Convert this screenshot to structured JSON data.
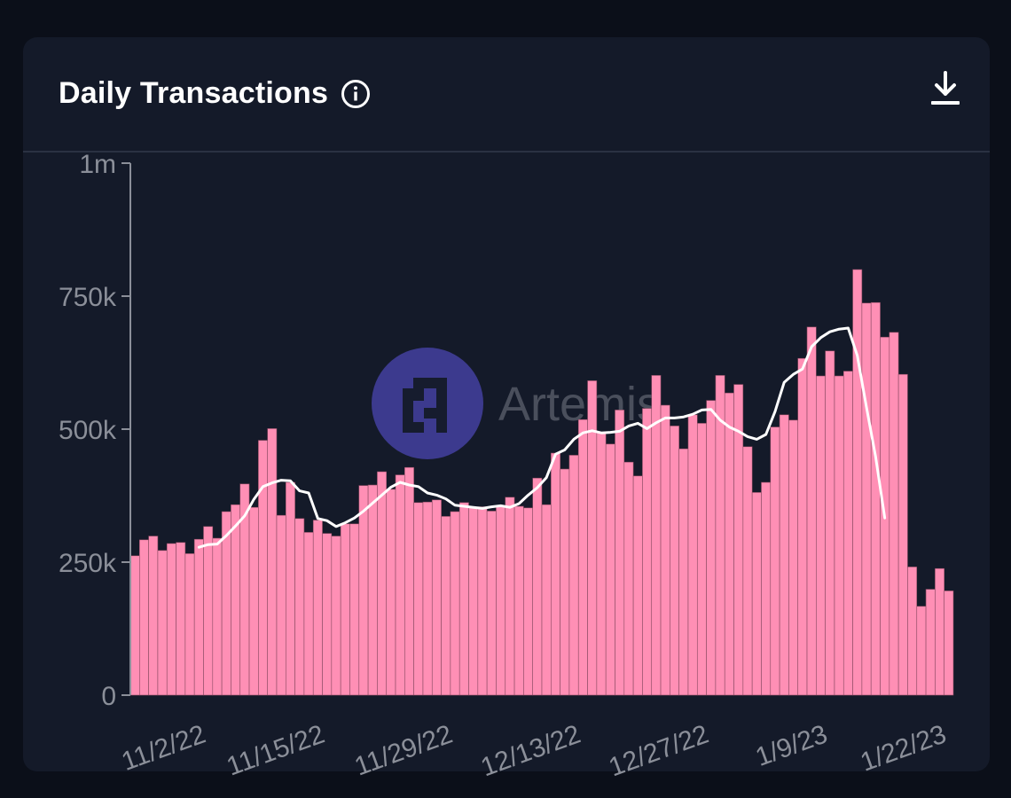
{
  "card": {
    "title": "Daily Transactions",
    "info_icon": "info-circle-icon",
    "download_icon": "download-icon"
  },
  "watermark": {
    "text": "Artemis",
    "logo_icon": "artemis-logo-icon"
  },
  "colors": {
    "bar": "#ff8fb5",
    "line": "#ffffff",
    "background": "#141a29",
    "axis_text": "#8b8f99"
  },
  "chart_data": {
    "type": "bar",
    "title": "Daily Transactions",
    "xlabel": "",
    "ylabel": "",
    "ylim": [
      0,
      1000000
    ],
    "y_ticks": [
      {
        "value": 0,
        "label": "0"
      },
      {
        "value": 250000,
        "label": "250k"
      },
      {
        "value": 500000,
        "label": "500k"
      },
      {
        "value": 750000,
        "label": "750k"
      },
      {
        "value": 1000000,
        "label": "1m"
      }
    ],
    "x_tick_labels": [
      {
        "label": "11/2/22",
        "index": 5
      },
      {
        "label": "11/15/22",
        "index": 18
      },
      {
        "label": "11/29/22",
        "index": 32
      },
      {
        "label": "12/13/22",
        "index": 46
      },
      {
        "label": "12/27/22",
        "index": 60
      },
      {
        "label": "1/9/23",
        "index": 73
      },
      {
        "label": "1/22/23",
        "index": 86
      }
    ],
    "grid": false,
    "series": [
      {
        "type": "bar",
        "values": [
          262000,
          292000,
          299000,
          272000,
          285000,
          287000,
          266000,
          293000,
          317000,
          295000,
          345000,
          358000,
          397000,
          353000,
          479000,
          501000,
          338000,
          400000,
          332000,
          306000,
          329000,
          304000,
          299000,
          322000,
          322000,
          394000,
          395000,
          420000,
          387000,
          414000,
          428000,
          362000,
          363000,
          367000,
          336000,
          345000,
          362000,
          353000,
          354000,
          346000,
          354000,
          372000,
          355000,
          352000,
          408000,
          358000,
          455000,
          425000,
          451000,
          518000,
          591000,
          493000,
          472000,
          536000,
          438000,
          412000,
          539000,
          601000,
          545000,
          506000,
          463000,
          527000,
          511000,
          554000,
          601000,
          568000,
          584000,
          467000,
          381000,
          400000,
          504000,
          527000,
          517000,
          633000,
          692000,
          600000,
          647000,
          600000,
          609000,
          800000,
          737000,
          738000,
          673000,
          682000,
          603000,
          241000,
          167000,
          199000,
          238000,
          196000
        ]
      },
      {
        "type": "line",
        "start_index": 7,
        "values": [
          278000,
          283000,
          284000,
          300000,
          318000,
          337000,
          368000,
          392000,
          399000,
          404000,
          403000,
          384000,
          380000,
          332000,
          328000,
          317000,
          324000,
          333000,
          346000,
          361000,
          376000,
          391000,
          400000,
          395000,
          392000,
          380000,
          376000,
          369000,
          357000,
          355000,
          353000,
          351000,
          354000,
          356000,
          353000,
          360000,
          376000,
          390000,
          409000,
          453000,
          461000,
          481000,
          493000,
          497000,
          493000,
          494000,
          496000,
          506000,
          511000,
          501000,
          512000,
          521000,
          521000,
          523000,
          528000,
          536000,
          537000,
          517000,
          504000,
          496000,
          486000,
          481000,
          490000,
          533000,
          588000,
          603000,
          613000,
          655000,
          672000,
          683000,
          688000,
          690000,
          638000,
          541000,
          448000,
          333000
        ]
      }
    ]
  }
}
